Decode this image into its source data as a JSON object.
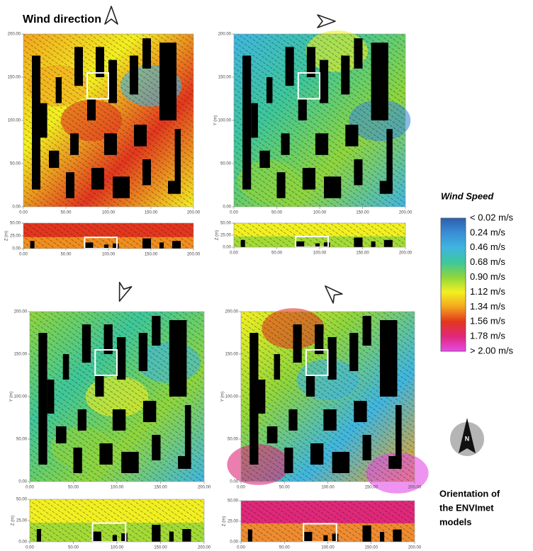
{
  "header": {
    "title": "Wind direction"
  },
  "axes": {
    "xlim": [
      0,
      200
    ],
    "ylim": [
      0,
      200
    ],
    "zlim": [
      0,
      50
    ],
    "x_ticks": [
      {
        "value": 0,
        "label": "0.00"
      },
      {
        "value": 50,
        "label": "50.00"
      },
      {
        "value": 100,
        "label": "100.00"
      },
      {
        "value": 150,
        "label": "150.00"
      },
      {
        "value": 200,
        "label": "200.00"
      }
    ],
    "y_ticks": [
      {
        "value": 0,
        "label": "0.00"
      },
      {
        "value": 50,
        "label": "50.00"
      },
      {
        "value": 100,
        "label": "100.00"
      },
      {
        "value": 150,
        "label": "150.00"
      },
      {
        "value": 200,
        "label": "200.00"
      }
    ],
    "z_ticks": [
      {
        "value": 0,
        "label": "0.00"
      },
      {
        "value": 25,
        "label": "25.00"
      },
      {
        "value": 50,
        "label": "50.00"
      }
    ],
    "y_label": "Y (m)",
    "z_label": "Z (m)"
  },
  "legend": {
    "title": "Wind Speed",
    "labels": [
      "< 0.02 m/s",
      "0.24 m/s",
      "0.46 m/s",
      "0.68 m/s",
      "0.90 m/s",
      "1.12 m/s",
      "1.34 m/s",
      "1.56 m/s",
      "1.78 m/s",
      "> 2.00 m/s"
    ],
    "colors": [
      "#2b5fae",
      "#3a8ed6",
      "#3fb6e0",
      "#3ec79a",
      "#8fd63c",
      "#f2f021",
      "#f3a51e",
      "#e3361e",
      "#e0287a",
      "#e44be6"
    ]
  },
  "compass": {
    "label": "N"
  },
  "caption": {
    "lines": [
      "Orientation of",
      "the ENVImet",
      "models"
    ]
  }
}
